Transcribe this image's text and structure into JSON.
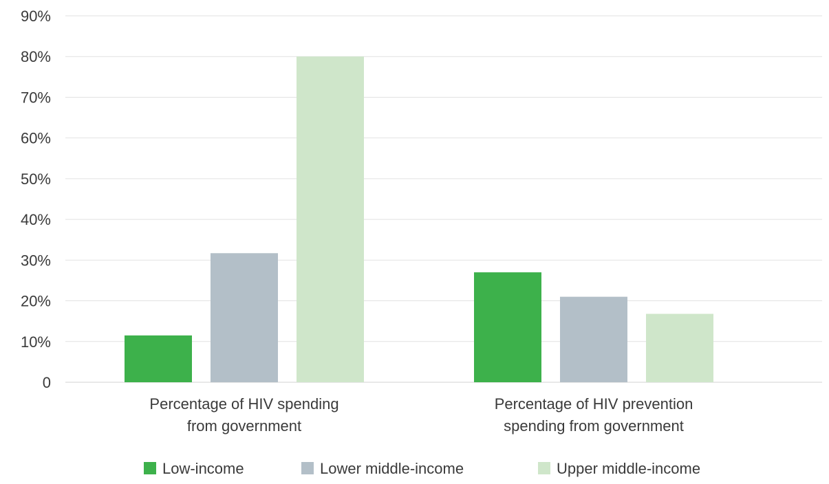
{
  "chart_data": {
    "type": "bar",
    "categories": [
      "Percentage of HIV spending from government",
      "Percentage of HIV prevention spending from government"
    ],
    "category_lines": [
      [
        "Percentage of HIV spending",
        "from government"
      ],
      [
        "Percentage of HIV prevention",
        "spending from government"
      ]
    ],
    "series": [
      {
        "name": "Low-income",
        "color": "#3db14b",
        "values": [
          11.5,
          27
        ]
      },
      {
        "name": "Lower middle-income",
        "color": "#b3bfc8",
        "values": [
          31.7,
          21
        ]
      },
      {
        "name": "Upper middle-income",
        "color": "#cfe6ca",
        "values": [
          80,
          16.8
        ]
      }
    ],
    "y_ticks": [
      0,
      10,
      20,
      30,
      40,
      50,
      60,
      70,
      80,
      90
    ],
    "y_tick_labels": [
      "0",
      "10%",
      "20%",
      "30%",
      "40%",
      "50%",
      "60%",
      "70%",
      "80%",
      "90%"
    ],
    "ylim": [
      0,
      90
    ],
    "grid": true,
    "legend_position": "bottom",
    "title": "",
    "xlabel": "",
    "ylabel": ""
  }
}
